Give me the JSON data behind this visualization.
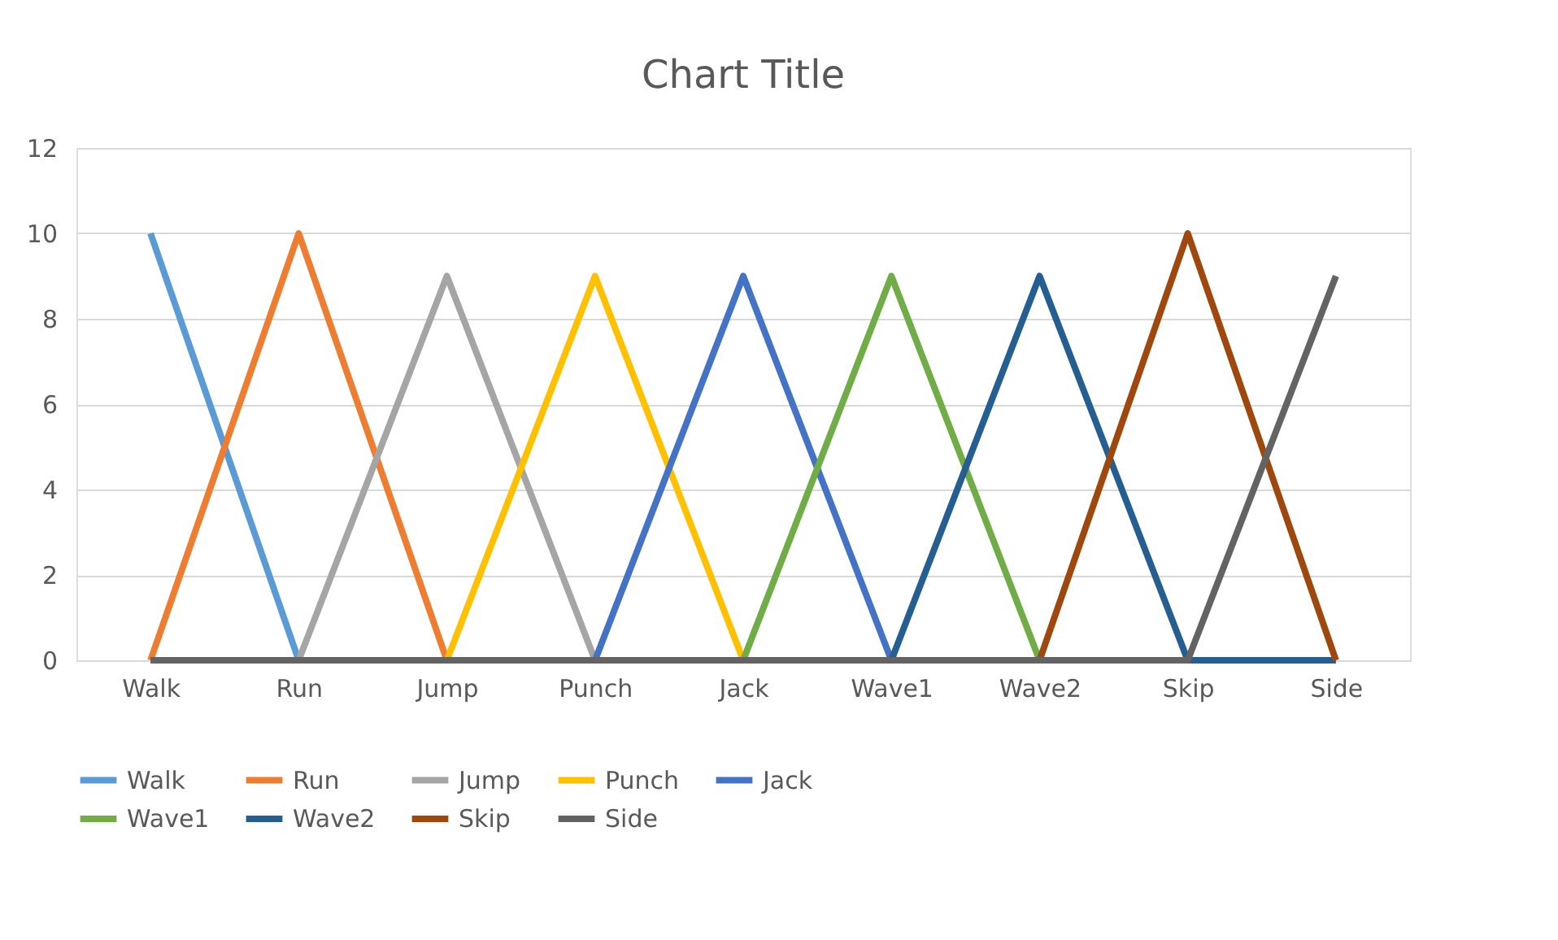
{
  "chart_data": {
    "type": "line",
    "title": "Chart Title",
    "categories": [
      "Walk",
      "Run",
      "Jump",
      "Punch",
      "Jack",
      "Wave1",
      "Wave2",
      "Skip",
      "Side"
    ],
    "series": [
      {
        "name": "Walk",
        "color": "#5b9bd5",
        "values": [
          10,
          0,
          null,
          null,
          null,
          null,
          null,
          null,
          null
        ]
      },
      {
        "name": "Run",
        "color": "#ed7d31",
        "values": [
          0,
          10,
          0,
          null,
          null,
          null,
          null,
          null,
          null
        ]
      },
      {
        "name": "Jump",
        "color": "#a5a5a5",
        "values": [
          null,
          0,
          9,
          0,
          null,
          null,
          null,
          null,
          null
        ]
      },
      {
        "name": "Punch",
        "color": "#ffc000",
        "values": [
          null,
          null,
          0,
          9,
          0,
          null,
          null,
          null,
          null
        ]
      },
      {
        "name": "Jack",
        "color": "#4472c4",
        "values": [
          null,
          null,
          null,
          0,
          9,
          0,
          null,
          null,
          null
        ]
      },
      {
        "name": "Wave1",
        "color": "#70ad47",
        "values": [
          null,
          null,
          null,
          null,
          0,
          9,
          0,
          null,
          null
        ]
      },
      {
        "name": "Wave2",
        "color": "#255e91",
        "values": [
          null,
          null,
          null,
          null,
          null,
          0,
          9,
          0,
          0
        ]
      },
      {
        "name": "Skip",
        "color": "#9e480e",
        "values": [
          null,
          null,
          null,
          null,
          null,
          null,
          0,
          10,
          0
        ]
      },
      {
        "name": "Side",
        "color": "#636363",
        "values": [
          0,
          0,
          0,
          0,
          0,
          0,
          0,
          0,
          9
        ]
      }
    ],
    "ylim": [
      0,
      12
    ],
    "yticks": [
      0,
      2,
      4,
      6,
      8,
      10,
      12
    ],
    "grid": "y",
    "legend": "bottom",
    "marker": "none",
    "line_style": "solid"
  }
}
